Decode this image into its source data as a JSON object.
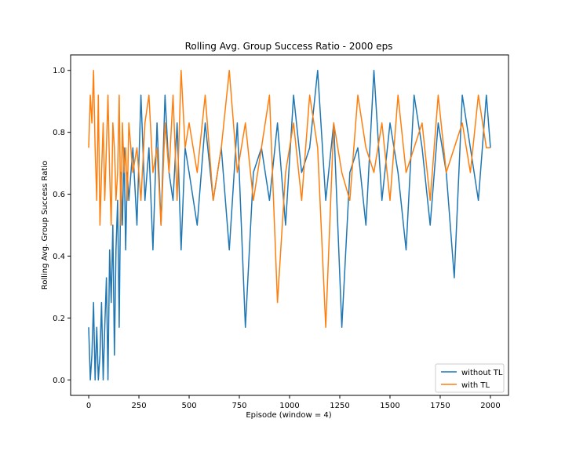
{
  "chart_data": {
    "type": "line",
    "title": "Rolling Avg. Group Success Ratio - 2000 eps",
    "xlabel": "Episode (window = 4)",
    "ylabel": "Rolling Avg. Group Success Ratio",
    "xlim": [
      -90,
      2090
    ],
    "ylim": [
      -0.05,
      1.05
    ],
    "xticks": [
      0,
      250,
      500,
      750,
      1000,
      1250,
      1500,
      1750,
      2000
    ],
    "xtick_labels": [
      "0",
      "250",
      "500",
      "750",
      "1000",
      "1250",
      "1500",
      "1750",
      "2000"
    ],
    "yticks": [
      0.0,
      0.2,
      0.4,
      0.6,
      0.8,
      1.0
    ],
    "ytick_labels": [
      "0.0",
      "0.2",
      "0.4",
      "0.6",
      "0.8",
      "1.0"
    ],
    "grid": false,
    "legend_position": "lower-right",
    "series": [
      {
        "name": "without TL",
        "color": "#1f77b4",
        "x": [
          0,
          8,
          16,
          24,
          32,
          40,
          48,
          56,
          64,
          72,
          80,
          88,
          96,
          104,
          112,
          120,
          128,
          136,
          144,
          152,
          160,
          168,
          176,
          184,
          192,
          200,
          220,
          240,
          260,
          280,
          300,
          320,
          340,
          360,
          380,
          400,
          420,
          440,
          460,
          480,
          500,
          540,
          580,
          620,
          660,
          700,
          740,
          780,
          820,
          860,
          900,
          940,
          980,
          1020,
          1060,
          1100,
          1140,
          1180,
          1220,
          1260,
          1300,
          1340,
          1380,
          1420,
          1460,
          1500,
          1540,
          1580,
          1620,
          1660,
          1700,
          1740,
          1780,
          1820,
          1860,
          1900,
          1940,
          1980,
          2000
        ],
        "values": [
          0.17,
          0.0,
          0.08,
          0.25,
          0.0,
          0.17,
          0.0,
          0.08,
          0.25,
          0.0,
          0.17,
          0.33,
          0.0,
          0.42,
          0.25,
          0.5,
          0.08,
          0.42,
          0.58,
          0.17,
          0.67,
          0.5,
          0.75,
          0.42,
          0.67,
          0.58,
          0.75,
          0.5,
          0.92,
          0.58,
          0.75,
          0.42,
          0.83,
          0.5,
          0.92,
          0.67,
          0.58,
          0.83,
          0.42,
          0.75,
          0.67,
          0.5,
          0.83,
          0.58,
          0.75,
          0.42,
          0.83,
          0.17,
          0.67,
          0.75,
          0.58,
          0.83,
          0.5,
          0.92,
          0.67,
          0.75,
          1.0,
          0.58,
          0.83,
          0.17,
          0.67,
          0.75,
          0.5,
          1.0,
          0.58,
          0.83,
          0.67,
          0.42,
          0.92,
          0.75,
          0.5,
          0.83,
          0.67,
          0.33,
          0.92,
          0.75,
          0.58,
          0.92,
          0.75
        ]
      },
      {
        "name": "with TL",
        "color": "#ff7f0e",
        "x": [
          0,
          8,
          16,
          24,
          32,
          40,
          48,
          56,
          64,
          72,
          80,
          88,
          96,
          104,
          112,
          120,
          128,
          136,
          144,
          152,
          160,
          168,
          176,
          184,
          192,
          200,
          220,
          240,
          260,
          280,
          300,
          320,
          340,
          360,
          380,
          400,
          420,
          440,
          460,
          480,
          500,
          540,
          580,
          620,
          660,
          700,
          740,
          780,
          820,
          860,
          900,
          940,
          980,
          1020,
          1060,
          1100,
          1140,
          1180,
          1220,
          1260,
          1300,
          1340,
          1380,
          1420,
          1460,
          1500,
          1540,
          1580,
          1620,
          1660,
          1700,
          1740,
          1780,
          1820,
          1860,
          1900,
          1940,
          1980,
          2000
        ],
        "values": [
          0.75,
          0.92,
          0.83,
          1.0,
          0.75,
          0.58,
          0.92,
          0.5,
          0.67,
          0.83,
          0.58,
          0.75,
          0.92,
          0.67,
          0.5,
          0.83,
          0.75,
          0.58,
          0.67,
          0.92,
          0.5,
          0.83,
          0.67,
          0.75,
          0.58,
          0.83,
          0.67,
          0.75,
          0.58,
          0.83,
          0.92,
          0.67,
          0.75,
          0.5,
          0.83,
          0.67,
          0.92,
          0.58,
          1.0,
          0.75,
          0.83,
          0.67,
          0.92,
          0.58,
          0.75,
          1.0,
          0.67,
          0.83,
          0.58,
          0.75,
          0.92,
          0.25,
          0.67,
          0.83,
          0.58,
          0.92,
          0.75,
          0.17,
          0.83,
          0.67,
          0.58,
          0.92,
          0.75,
          0.67,
          0.83,
          0.58,
          0.92,
          0.67,
          0.75,
          0.83,
          0.58,
          0.92,
          0.67,
          0.75,
          0.83,
          0.67,
          0.92,
          0.75,
          0.75
        ]
      }
    ]
  }
}
